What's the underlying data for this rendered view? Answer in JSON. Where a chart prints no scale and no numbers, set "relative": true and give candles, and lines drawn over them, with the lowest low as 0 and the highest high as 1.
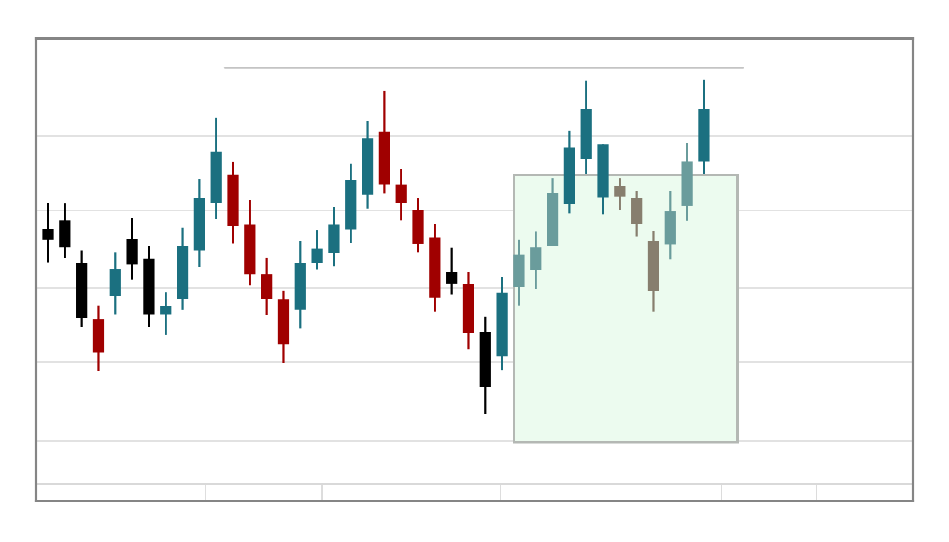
{
  "chart_data": {
    "type": "candlestick",
    "relative": true,
    "grid": "y",
    "categories": [
      null,
      null,
      null,
      null,
      null,
      null,
      null,
      null,
      null,
      null,
      null,
      null,
      null,
      null,
      null,
      null,
      null,
      null,
      null,
      null,
      null,
      null,
      null,
      null,
      null,
      null,
      null,
      null,
      null,
      null,
      null,
      null,
      null,
      null,
      null,
      null,
      null,
      null,
      null,
      null
    ],
    "ohlc": [
      [
        0.553,
        0.631,
        0.454,
        0.521
      ],
      [
        0.579,
        0.63,
        0.466,
        0.499
      ],
      [
        0.452,
        0.49,
        0.26,
        0.288
      ],
      [
        0.284,
        0.325,
        0.13,
        0.184
      ],
      [
        0.353,
        0.484,
        0.298,
        0.434
      ],
      [
        0.523,
        0.586,
        0.401,
        0.448
      ],
      [
        0.464,
        0.503,
        0.26,
        0.298
      ],
      [
        0.298,
        0.364,
        0.238,
        0.324
      ],
      [
        0.345,
        0.557,
        0.312,
        0.502
      ],
      [
        0.49,
        0.702,
        0.44,
        0.646
      ],
      [
        0.632,
        0.886,
        0.582,
        0.785
      ],
      [
        0.715,
        0.755,
        0.509,
        0.563
      ],
      [
        0.566,
        0.64,
        0.385,
        0.419
      ],
      [
        0.419,
        0.468,
        0.295,
        0.345
      ],
      [
        0.343,
        0.369,
        0.153,
        0.208
      ],
      [
        0.312,
        0.518,
        0.256,
        0.452
      ],
      [
        0.453,
        0.55,
        0.433,
        0.494
      ],
      [
        0.481,
        0.619,
        0.442,
        0.566
      ],
      [
        0.551,
        0.749,
        0.511,
        0.7
      ],
      [
        0.656,
        0.877,
        0.614,
        0.824
      ],
      [
        0.844,
        0.966,
        0.659,
        0.686
      ],
      [
        0.686,
        0.732,
        0.579,
        0.632
      ],
      [
        0.61,
        0.645,
        0.484,
        0.508
      ],
      [
        0.528,
        0.568,
        0.306,
        0.348
      ],
      [
        0.424,
        0.498,
        0.357,
        0.39
      ],
      [
        0.39,
        0.424,
        0.193,
        0.242
      ],
      [
        0.245,
        0.291,
        0.0,
        0.081
      ],
      [
        0.172,
        0.41,
        0.132,
        0.363
      ],
      [
        0.38,
        0.521,
        0.325,
        0.477
      ],
      [
        0.431,
        0.545,
        0.373,
        0.499
      ],
      [
        0.502,
        0.706,
        0.502,
        0.66
      ],
      [
        0.628,
        0.848,
        0.6,
        0.796
      ],
      [
        0.761,
        0.996,
        0.719,
        0.912
      ],
      [
        0.648,
        0.807,
        0.598,
        0.807
      ],
      [
        0.682,
        0.706,
        0.61,
        0.65
      ],
      [
        0.647,
        0.667,
        0.53,
        0.567
      ],
      [
        0.518,
        0.547,
        0.306,
        0.368
      ],
      [
        0.507,
        0.667,
        0.463,
        0.607
      ],
      [
        0.622,
        0.81,
        0.578,
        0.756
      ],
      [
        0.756,
        1.0,
        0.719,
        0.912
      ]
    ],
    "colors": [
      "#000000",
      "#000000",
      "#000000",
      "#a00000",
      "#1b7080",
      "#000000",
      "#000000",
      "#1b7080",
      "#1b7080",
      "#1b7080",
      "#1b7080",
      "#a00000",
      "#a00000",
      "#a00000",
      "#a00000",
      "#1b7080",
      "#1b7080",
      "#1b7080",
      "#1b7080",
      "#1b7080",
      "#a00000",
      "#a00000",
      "#a00000",
      "#a00000",
      "#000000",
      "#a00000",
      "#000000",
      "#1b7080",
      "#6a9c9c",
      "#6a9c9c",
      "#6a9c9c",
      "#1b7080",
      "#1b7080",
      "#1b7080",
      "#877e6e",
      "#877e6e",
      "#877e6e",
      "#6a9c9c",
      "#6a9c9c",
      "#1b7080"
    ]
  }
}
